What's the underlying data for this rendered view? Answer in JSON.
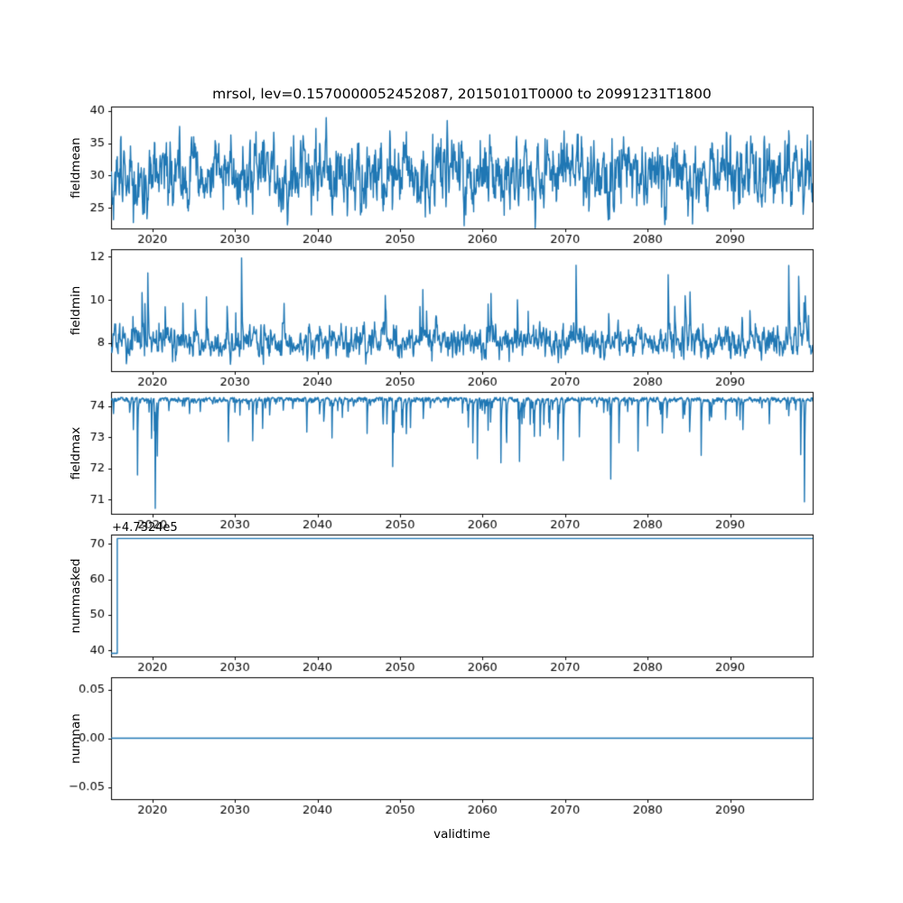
{
  "figure": {
    "title": "mrsol, lev=0.1570000052452087, 20150101T0000 to 20991231T1800",
    "xlabel": "validtime",
    "line_color": "#1f77b4",
    "background": "#ffffff",
    "text_color": "#000000"
  },
  "chart_data": [
    {
      "type": "line",
      "ylabel": "fieldmean",
      "x_range": [
        2015,
        2100
      ],
      "xticks": [
        2020,
        2030,
        2040,
        2050,
        2060,
        2070,
        2080,
        2090
      ],
      "xtick_labels": [
        "2020",
        "2030",
        "2040",
        "2050",
        "2060",
        "2070",
        "2080",
        "2090"
      ],
      "ylim": [
        21.8,
        40.7
      ],
      "yticks": [
        25,
        30,
        35,
        40
      ],
      "ytick_labels": [
        "25",
        "30",
        "35",
        "40"
      ],
      "grid": false,
      "legend": "none",
      "series": [
        {
          "name": "fieldmean",
          "color": "#1f77b4",
          "summary": {
            "approx_mean": 30,
            "approx_min": 22,
            "approx_max": 39.5,
            "character": "dense high-frequency noise band"
          },
          "gen": {
            "kind": "ar",
            "seed": 101,
            "points": 1700,
            "mean": 30.1,
            "phi": 0.55,
            "sigma": 2.35,
            "clamp": [
              21.9,
              39.6
            ]
          }
        }
      ]
    },
    {
      "type": "line",
      "ylabel": "fieldmin",
      "x_range": [
        2015,
        2100
      ],
      "xticks": [
        2020,
        2030,
        2040,
        2050,
        2060,
        2070,
        2080,
        2090
      ],
      "xtick_labels": [
        "2020",
        "2030",
        "2040",
        "2050",
        "2060",
        "2070",
        "2080",
        "2090"
      ],
      "ylim": [
        6.7,
        12.35
      ],
      "yticks": [
        8,
        10,
        12
      ],
      "ytick_labels": [
        "8",
        "10",
        "12"
      ],
      "grid": false,
      "legend": "none",
      "series": [
        {
          "name": "fieldmin",
          "color": "#1f77b4",
          "summary": {
            "approx_base": 8,
            "approx_min": 6.9,
            "approx_max": 12,
            "character": "baseline near 8 with upward spikes to 10-12"
          },
          "gen": {
            "kind": "spiky",
            "seed": 202,
            "points": 1700,
            "base": 8.05,
            "bphi": 0.5,
            "bsigma": 0.3,
            "dir": 1,
            "prob": 0.035,
            "smin": 0.5,
            "sscale": 1.0,
            "smax": 3.9,
            "decay": 0.55,
            "clamp": [
              6.85,
              12.05
            ]
          }
        }
      ]
    },
    {
      "type": "line",
      "ylabel": "fieldmax",
      "x_range": [
        2015,
        2100
      ],
      "xticks": [
        2020,
        2030,
        2040,
        2050,
        2060,
        2070,
        2080,
        2090
      ],
      "xtick_labels": [
        "2020",
        "2030",
        "2040",
        "2050",
        "2060",
        "2070",
        "2080",
        "2090"
      ],
      "ylim": [
        70.55,
        74.45
      ],
      "yticks": [
        71,
        72,
        73,
        74
      ],
      "ytick_labels": [
        "71",
        "72",
        "73",
        "74"
      ],
      "grid": false,
      "legend": "none",
      "series": [
        {
          "name": "fieldmax",
          "color": "#1f77b4",
          "summary": {
            "approx_ceiling": 74.2,
            "approx_min": 70.7,
            "character": "flat top near 74.2 with dense downward needles, deepest ~70.7"
          },
          "gen": {
            "kind": "spiky",
            "seed": 303,
            "points": 1700,
            "base": 74.21,
            "bphi": 0.4,
            "bsigma": 0.04,
            "dir": -1,
            "prob": 0.09,
            "smin": 0.12,
            "sscale": 0.6,
            "smax": 3.45,
            "decay": 0.4,
            "clamp": [
              70.72,
              74.27
            ]
          }
        }
      ]
    },
    {
      "type": "line",
      "ylabel": "nummasked",
      "offset_text": "+4.7324e5",
      "x_range": [
        2015,
        2100
      ],
      "xticks": [
        2020,
        2030,
        2040,
        2050,
        2060,
        2070,
        2080,
        2090
      ],
      "xtick_labels": [
        "2020",
        "2030",
        "2040",
        "2050",
        "2060",
        "2070",
        "2080",
        "2090"
      ],
      "ylim": [
        38.3,
        72.6
      ],
      "yticks": [
        40,
        50,
        60,
        70
      ],
      "ytick_labels": [
        "40",
        "50",
        "60",
        "70"
      ],
      "grid": false,
      "legend": "none",
      "series": [
        {
          "name": "nummasked",
          "color": "#1f77b4",
          "summary": {
            "start_value": 39.2,
            "end_value": 71.5,
            "step_year": 2015.75,
            "character": "step function: brief low value then constant high value"
          },
          "gen": {
            "kind": "points",
            "points": [
              [
                2015,
                39.2
              ],
              [
                2015.75,
                39.2
              ],
              [
                2015.75,
                71.5
              ],
              [
                2100,
                71.5
              ]
            ]
          }
        }
      ]
    },
    {
      "type": "line",
      "ylabel": "numnan",
      "x_range": [
        2015,
        2100
      ],
      "xticks": [
        2020,
        2030,
        2040,
        2050,
        2060,
        2070,
        2080,
        2090
      ],
      "xtick_labels": [
        "2020",
        "2030",
        "2040",
        "2050",
        "2060",
        "2070",
        "2080",
        "2090"
      ],
      "ylim": [
        -0.0625,
        0.0625
      ],
      "yticks": [
        -0.05,
        0.0,
        0.05
      ],
      "ytick_labels": [
        "−0.05",
        "0.00",
        "0.05"
      ],
      "grid": false,
      "legend": "none",
      "series": [
        {
          "name": "numnan",
          "color": "#1f77b4",
          "summary": {
            "constant_value": 0,
            "character": "constant zero line"
          },
          "gen": {
            "kind": "points",
            "points": [
              [
                2015,
                0
              ],
              [
                2100,
                0
              ]
            ]
          }
        }
      ]
    }
  ]
}
